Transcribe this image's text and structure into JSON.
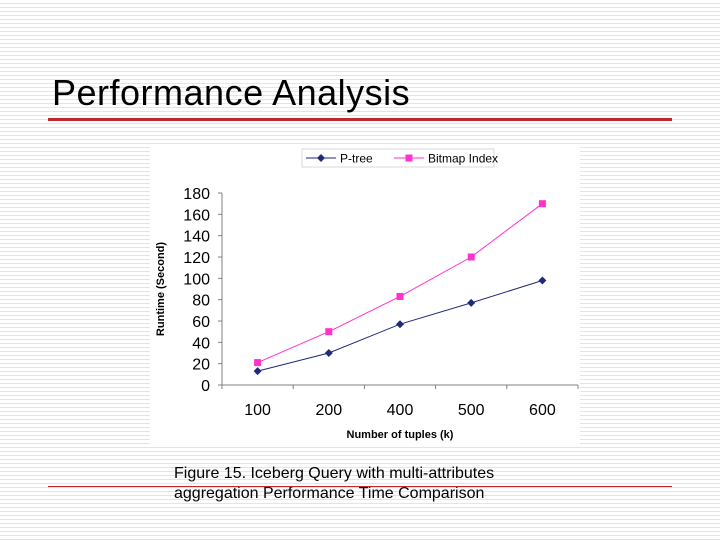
{
  "slide": {
    "title": "Performance Analysis",
    "caption_line1": "Figure 15. Iceberg Query with multi-attributes",
    "caption_line2": "aggregation Performance Time Comparison"
  },
  "chart_data": {
    "type": "line",
    "categories": [
      "100",
      "200",
      "400",
      "500",
      "600"
    ],
    "series": [
      {
        "name": "P-tree",
        "values": [
          13,
          30,
          57,
          77,
          98
        ],
        "color": "#1f2a7a",
        "marker": "diamond"
      },
      {
        "name": "Bitmap Index",
        "values": [
          21,
          50,
          83,
          120,
          170
        ],
        "color": "#ff33cc",
        "marker": "square"
      }
    ],
    "xlabel": "Number of tuples (k)",
    "ylabel": "Runtime (Second)",
    "ylim": [
      0,
      180
    ],
    "yticks": [
      0,
      20,
      40,
      60,
      80,
      100,
      120,
      140,
      160,
      180
    ],
    "grid": false,
    "legend": "top"
  }
}
